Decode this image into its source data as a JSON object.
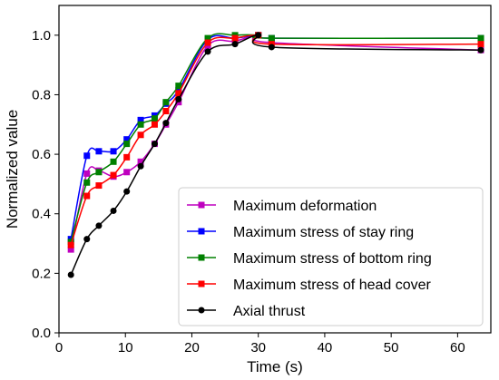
{
  "chart_data": {
    "type": "line",
    "title": "",
    "xlabel": "Time (s)",
    "ylabel": "Normalized value",
    "xlim": [
      0,
      65
    ],
    "ylim": [
      0.0,
      1.1
    ],
    "xticks": [
      "0",
      "10",
      "20",
      "30",
      "40",
      "50",
      "60"
    ],
    "yticks": [
      "0.0",
      "0.2",
      "0.4",
      "0.6",
      "0.8",
      "1.0"
    ],
    "grid": false,
    "legend_position": "lower-right",
    "series": [
      {
        "name": "Maximum deformation",
        "color": "#bf00bf",
        "marker": "square",
        "x": [
          1.8,
          4.2,
          6.0,
          8.2,
          10.2,
          12.3,
          14.4,
          16.1,
          18.0,
          22.4,
          26.5,
          30.0,
          32.0,
          63.5
        ],
        "y": [
          0.28,
          0.535,
          0.545,
          0.525,
          0.54,
          0.575,
          0.635,
          0.7,
          0.775,
          0.965,
          0.98,
          1.0,
          0.975,
          0.95
        ]
      },
      {
        "name": "Maximum stress of stay ring",
        "color": "#0000ff",
        "marker": "square",
        "x": [
          1.8,
          4.2,
          6.0,
          8.2,
          10.2,
          12.3,
          14.4,
          16.1,
          18.0,
          22.4,
          26.5,
          30.0,
          32.0,
          63.5
        ],
        "y": [
          0.315,
          0.595,
          0.61,
          0.61,
          0.65,
          0.715,
          0.73,
          0.77,
          0.815,
          0.985,
          0.99,
          1.0,
          0.99,
          0.99
        ]
      },
      {
        "name": "Maximum stress of bottom ring",
        "color": "#008000",
        "marker": "square",
        "x": [
          1.8,
          4.2,
          6.0,
          8.2,
          10.2,
          12.3,
          14.4,
          16.1,
          18.0,
          22.4,
          26.5,
          30.0,
          32.0,
          63.5
        ],
        "y": [
          0.305,
          0.505,
          0.54,
          0.575,
          0.635,
          0.7,
          0.72,
          0.775,
          0.83,
          0.99,
          1.0,
          1.0,
          0.99,
          0.99
        ]
      },
      {
        "name": "Maximum stress of head cover",
        "color": "#ff0000",
        "marker": "square",
        "x": [
          1.8,
          4.2,
          6.0,
          8.2,
          10.2,
          12.3,
          14.4,
          16.1,
          18.0,
          22.4,
          26.5,
          30.0,
          32.0,
          63.5
        ],
        "y": [
          0.295,
          0.46,
          0.495,
          0.53,
          0.59,
          0.665,
          0.7,
          0.745,
          0.805,
          0.975,
          0.99,
          1.0,
          0.97,
          0.97
        ]
      },
      {
        "name": "Axial thrust",
        "color": "#000000",
        "marker": "circle",
        "x": [
          1.8,
          4.2,
          6.0,
          8.2,
          10.2,
          12.3,
          14.4,
          16.1,
          18.0,
          22.4,
          26.5,
          30.0,
          32.0,
          63.5
        ],
        "y": [
          0.195,
          0.315,
          0.36,
          0.41,
          0.475,
          0.56,
          0.635,
          0.705,
          0.785,
          0.945,
          0.97,
          1.0,
          0.96,
          0.95
        ]
      }
    ]
  }
}
